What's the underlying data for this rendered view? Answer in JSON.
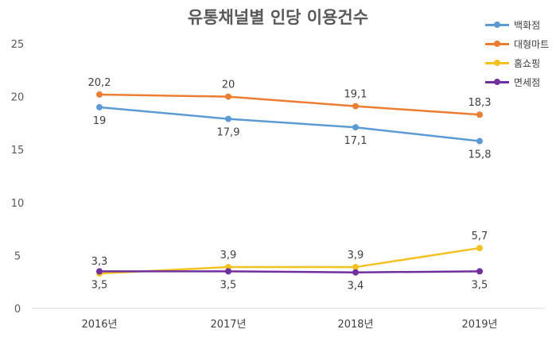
{
  "chart_data": {
    "type": "line",
    "title": "유통채널별 인당 이용건수",
    "categories": [
      "2016년",
      "2017년",
      "2018년",
      "2019년"
    ],
    "ylim": [
      0,
      25
    ],
    "yticks": [
      "0",
      "5",
      "10",
      "15",
      "20",
      "25"
    ],
    "grid": false,
    "legend_position": "top-right",
    "series": [
      {
        "name": "백화점",
        "color": "#5b9bd5",
        "values": [
          19,
          17.9,
          17.1,
          15.8
        ],
        "labels": [
          "19",
          "17,9",
          "17,1",
          "15,8"
        ],
        "label_side": "below"
      },
      {
        "name": "대형마트",
        "color": "#ed7d31",
        "values": [
          20.2,
          20,
          19.1,
          18.3
        ],
        "labels": [
          "20,2",
          "20",
          "19,1",
          "18,3"
        ],
        "label_side": "above"
      },
      {
        "name": "홈쇼핑",
        "color": "#f4c120",
        "values": [
          3.3,
          3.9,
          3.9,
          5.7
        ],
        "labels": [
          "3,3",
          "3,9",
          "3,9",
          "5,7"
        ],
        "label_side": "above"
      },
      {
        "name": "면세점",
        "color": "#7030a0",
        "values": [
          3.5,
          3.5,
          3.4,
          3.5
        ],
        "labels": [
          "3,5",
          "3,5",
          "3,4",
          "3,5"
        ],
        "label_side": "below"
      }
    ]
  }
}
